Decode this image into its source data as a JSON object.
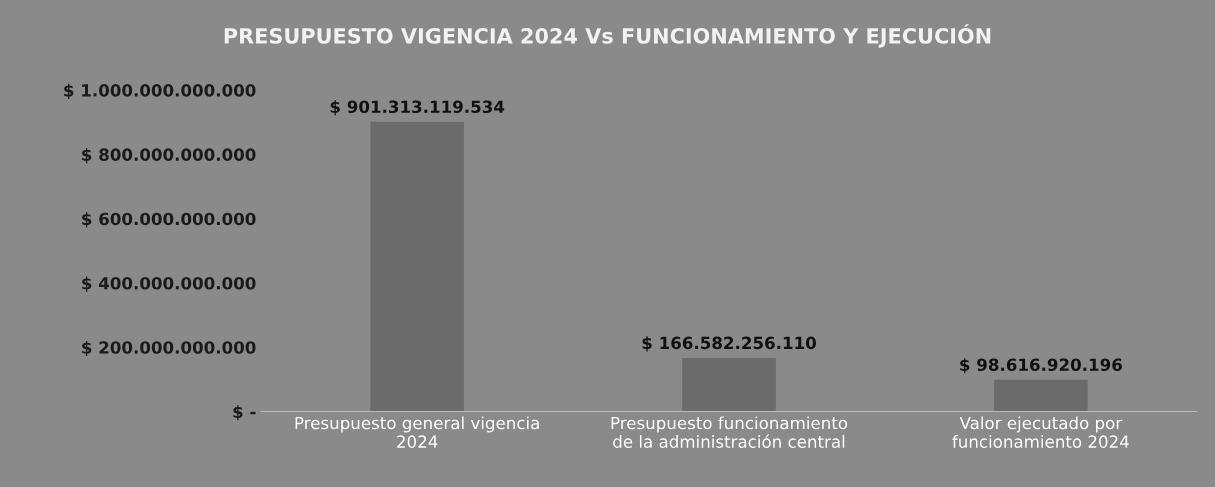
{
  "chart_data": {
    "type": "bar",
    "title": "PRESUPUESTO VIGENCIA 2024 Vs FUNCIONAMIENTO Y EJECUCIÓN",
    "categories": [
      "Presupuesto general vigencia 2024",
      "Presupuesto funcionamiento de la administración central",
      "Valor ejecutado por funcionamiento 2024"
    ],
    "values": [
      901313119534,
      166582256110,
      98616920196
    ],
    "value_labels": [
      "$ 901.313.119.534",
      "$ 166.582.256.110",
      "$ 98.616.920.196"
    ],
    "color": "#6b6b6b",
    "ylim": [
      0,
      1000000000000
    ],
    "yticks": [
      {
        "value": 0,
        "label": "$ -"
      },
      {
        "value": 200000000000,
        "label": "$ 200.000.000.000"
      },
      {
        "value": 400000000000,
        "label": "$ 400.000.000.000"
      },
      {
        "value": 600000000000,
        "label": "$ 600.000.000.000"
      },
      {
        "value": 800000000000,
        "label": "$ 800.000.000.000"
      },
      {
        "value": 1000000000000,
        "label": "$ 1.000.000.000.000"
      }
    ],
    "grid": false
  }
}
